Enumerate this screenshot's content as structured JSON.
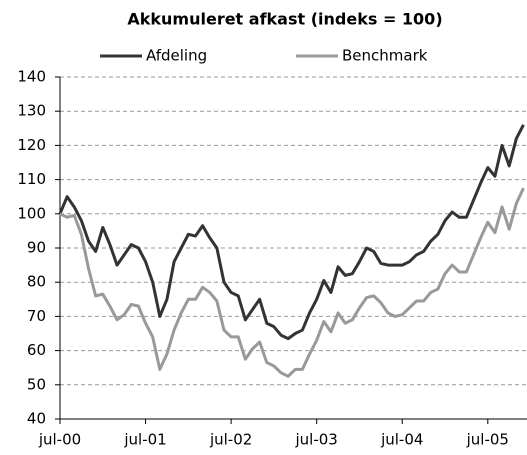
{
  "chart_data": {
    "type": "line",
    "title": "Akkumuleret afkast (indeks = 100)",
    "categories": [
      "jul-00",
      null,
      null,
      null,
      null,
      null,
      null,
      null,
      null,
      null,
      null,
      null,
      "jul-01",
      null,
      null,
      null,
      null,
      null,
      null,
      null,
      null,
      null,
      null,
      null,
      "jul-02",
      null,
      null,
      null,
      null,
      null,
      null,
      null,
      null,
      null,
      null,
      null,
      "jul-03",
      null,
      null,
      null,
      null,
      null,
      null,
      null,
      null,
      null,
      null,
      null,
      "jul-04",
      null,
      null,
      null,
      null,
      null,
      null,
      null,
      null,
      null,
      null,
      null,
      "jul-05",
      null,
      null,
      null,
      null,
      null
    ],
    "series": [
      {
        "name": "Afdeling",
        "color": "#333333",
        "values": [
          100,
          105,
          102,
          98,
          92,
          89,
          96,
          91,
          85,
          88,
          91,
          90,
          86,
          80,
          70,
          75,
          86,
          90,
          94,
          93.5,
          96.5,
          93,
          90,
          80,
          77,
          76,
          69,
          72,
          75,
          68,
          67,
          64.5,
          63.5,
          65,
          66,
          71,
          75,
          80.5,
          77,
          84.5,
          82,
          82.5,
          86,
          90,
          89,
          85.5,
          85,
          85,
          85,
          86,
          88,
          89,
          92,
          94,
          98,
          100.5,
          99,
          99,
          104,
          109,
          113.5,
          111,
          120,
          114,
          122,
          126
        ]
      },
      {
        "name": "Benchmark",
        "color": "#999999",
        "values": [
          100,
          99,
          99.5,
          94,
          84,
          76,
          76.5,
          73,
          69,
          70.5,
          73.5,
          73,
          68,
          64,
          54.5,
          59,
          66,
          71,
          75,
          75,
          78.5,
          77,
          74.5,
          66,
          64,
          64,
          57.5,
          60.5,
          62.5,
          56.5,
          55.5,
          53.5,
          52.5,
          54.5,
          54.5,
          59,
          63,
          68.5,
          65.5,
          71,
          68,
          69,
          72.5,
          75.5,
          76,
          74,
          71,
          70,
          70.5,
          72.5,
          74.5,
          74.5,
          77,
          78,
          82.5,
          85,
          83,
          83,
          88,
          93,
          97.5,
          94.5,
          102,
          95.5,
          103,
          107.5
        ]
      }
    ],
    "ylim": [
      40,
      140
    ],
    "yticks": [
      40,
      50,
      60,
      70,
      80,
      90,
      100,
      110,
      120,
      130,
      140
    ],
    "grid": true
  }
}
